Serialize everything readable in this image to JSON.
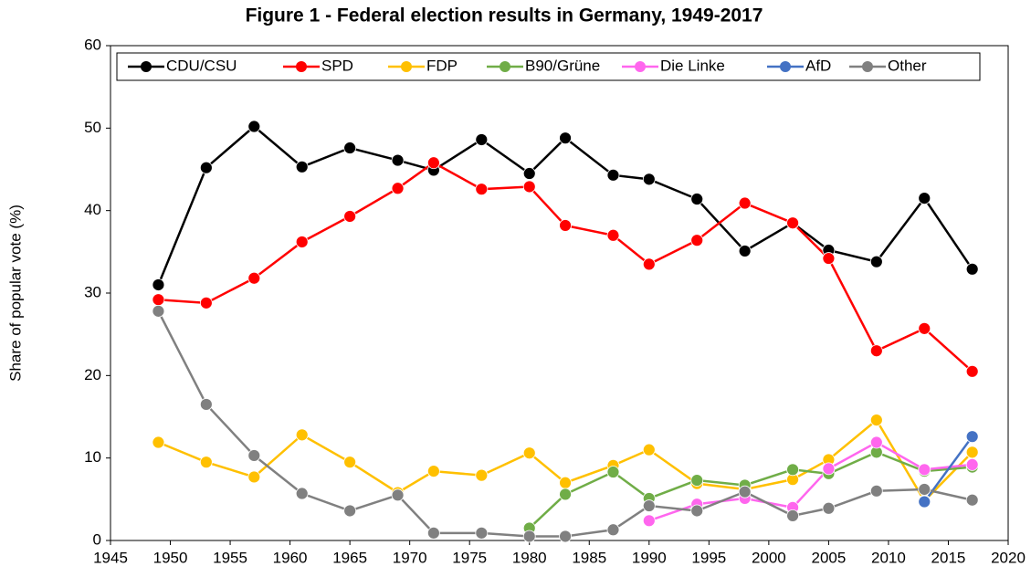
{
  "chart_data": {
    "type": "line",
    "title": "Figure 1 - Federal election results in Germany, 1949-2017",
    "y_label": "Share of popular vote (%)",
    "x": [
      1949,
      1953,
      1957,
      1961,
      1965,
      1969,
      1972,
      1976,
      1980,
      1983,
      1987,
      1990,
      1994,
      1998,
      2002,
      2005,
      2009,
      2013,
      2017
    ],
    "series": [
      {
        "name": "CDU/CSU",
        "color": "#000000",
        "values": [
          31.0,
          45.2,
          50.2,
          45.3,
          47.6,
          46.1,
          44.9,
          48.6,
          44.5,
          48.8,
          44.3,
          43.8,
          41.4,
          35.1,
          38.5,
          35.2,
          33.8,
          41.5,
          32.9
        ]
      },
      {
        "name": "SPD",
        "color": "#ff0000",
        "values": [
          29.2,
          28.8,
          31.8,
          36.2,
          39.3,
          42.7,
          45.8,
          42.6,
          42.9,
          38.2,
          37.0,
          33.5,
          36.4,
          40.9,
          38.5,
          34.2,
          23.0,
          25.7,
          20.5
        ]
      },
      {
        "name": "FDP",
        "color": "#ffc000",
        "values": [
          11.9,
          9.5,
          7.7,
          12.8,
          9.5,
          5.8,
          8.4,
          7.9,
          10.6,
          7.0,
          9.1,
          11.0,
          6.9,
          6.2,
          7.4,
          9.8,
          14.6,
          4.8,
          10.7
        ]
      },
      {
        "name": "B90/Grüne",
        "color": "#70ad47",
        "values": [
          null,
          null,
          null,
          null,
          null,
          null,
          null,
          null,
          1.5,
          5.6,
          8.3,
          5.1,
          7.3,
          6.7,
          8.6,
          8.1,
          10.7,
          8.4,
          8.9
        ]
      },
      {
        "name": "Die Linke",
        "color": "#ff66ee",
        "values": [
          null,
          null,
          null,
          null,
          null,
          null,
          null,
          null,
          null,
          null,
          null,
          2.4,
          4.4,
          5.1,
          4.0,
          8.7,
          11.9,
          8.6,
          9.2
        ]
      },
      {
        "name": "AfD",
        "color": "#4472c4",
        "values": [
          null,
          null,
          null,
          null,
          null,
          null,
          null,
          null,
          null,
          null,
          null,
          null,
          null,
          null,
          null,
          null,
          null,
          4.7,
          12.6
        ]
      },
      {
        "name": "Other",
        "color": "#808080",
        "values": [
          27.8,
          16.5,
          10.3,
          5.7,
          3.6,
          5.5,
          0.9,
          0.9,
          0.5,
          0.5,
          1.3,
          4.2,
          3.6,
          5.9,
          3.0,
          3.9,
          6.0,
          6.2,
          4.9
        ]
      }
    ],
    "xlim": [
      1945,
      2020
    ],
    "xticks": [
      1945,
      1950,
      1955,
      1960,
      1965,
      1970,
      1975,
      1980,
      1985,
      1990,
      1995,
      2000,
      2005,
      2010,
      2015,
      2020
    ],
    "ylim": [
      0,
      60
    ],
    "yticks": [
      0,
      10,
      20,
      30,
      40,
      50,
      60
    ],
    "grid": false,
    "legend": "top"
  }
}
